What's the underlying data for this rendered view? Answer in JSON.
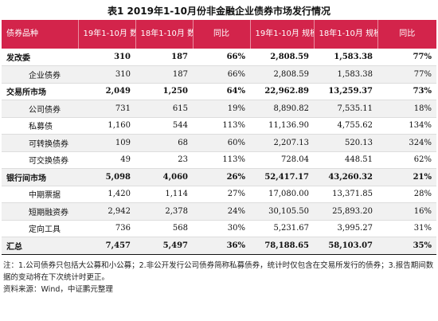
{
  "title": "表1 2019年1-10月份非金融企业债券市场发行情况",
  "headers": [
    "债券品种",
    "19年1-10月 数量（只）",
    "18年1-10月 数量（只）",
    "同比",
    "19年1-10月 规模（亿元）",
    "18年1-10月 规模（亿元）",
    "同比"
  ],
  "rows": [
    {
      "name": "发改委",
      "c1": "310",
      "c2": "187",
      "c3": "66%",
      "c4": "2,808.59",
      "c5": "1,583.38",
      "c6": "77%",
      "style": "bold",
      "bg": "white"
    },
    {
      "name": "企业债券",
      "c1": "310",
      "c2": "187",
      "c3": "66%",
      "c4": "2,808.59",
      "c5": "1,583.38",
      "c6": "77%",
      "style": "sub",
      "bg": "alt"
    },
    {
      "name": "交易所市场",
      "c1": "2,049",
      "c2": "1,250",
      "c3": "64%",
      "c4": "22,962.89",
      "c5": "13,259.37",
      "c6": "73%",
      "style": "bold",
      "bg": "white"
    },
    {
      "name": "公司债券",
      "c1": "731",
      "c2": "615",
      "c3": "19%",
      "c4": "8,890.82",
      "c5": "7,535.11",
      "c6": "18%",
      "style": "sub",
      "bg": "alt"
    },
    {
      "name": "私募债",
      "c1": "1,160",
      "c2": "544",
      "c3": "113%",
      "c4": "11,136.90",
      "c5": "4,755.62",
      "c6": "134%",
      "style": "sub",
      "bg": "white"
    },
    {
      "name": "可转换债券",
      "c1": "109",
      "c2": "68",
      "c3": "60%",
      "c4": "2,207.13",
      "c5": "520.13",
      "c6": "324%",
      "style": "sub",
      "bg": "alt"
    },
    {
      "name": "可交换债券",
      "c1": "49",
      "c2": "23",
      "c3": "113%",
      "c4": "728.04",
      "c5": "448.51",
      "c6": "62%",
      "style": "sub",
      "bg": "white"
    },
    {
      "name": "银行间市场",
      "c1": "5,098",
      "c2": "4,060",
      "c3": "26%",
      "c4": "52,417.17",
      "c5": "43,260.32",
      "c6": "21%",
      "style": "bold",
      "bg": "alt"
    },
    {
      "name": "中期票据",
      "c1": "1,420",
      "c2": "1,114",
      "c3": "27%",
      "c4": "17,080.00",
      "c5": "13,371.85",
      "c6": "28%",
      "style": "sub",
      "bg": "white"
    },
    {
      "name": "短期融资券",
      "c1": "2,942",
      "c2": "2,378",
      "c3": "24%",
      "c4": "30,105.50",
      "c5": "25,893.20",
      "c6": "16%",
      "style": "sub",
      "bg": "alt"
    },
    {
      "name": "定向工具",
      "c1": "736",
      "c2": "568",
      "c3": "30%",
      "c4": "5,231.67",
      "c5": "3,995.27",
      "c6": "31%",
      "style": "sub",
      "bg": "white"
    },
    {
      "name": "汇总",
      "c1": "7,457",
      "c2": "5,497",
      "c3": "36%",
      "c4": "78,188.65",
      "c5": "58,103.07",
      "c6": "35%",
      "style": "bold total",
      "bg": "alt"
    }
  ],
  "notes": {
    "line1": "注：1.公司债券只包括大公募和小公募；2.非公开发行公司债券简称私募债券，统计时仅包含在交易所发行的债券；3.报告期间数据的变动将在下次统计时更正。",
    "line2": "资料来源：Wind，中证鹏元整理"
  },
  "colors": {
    "header_bg": "#d3244b",
    "alt_row": "#f1f1f1"
  }
}
